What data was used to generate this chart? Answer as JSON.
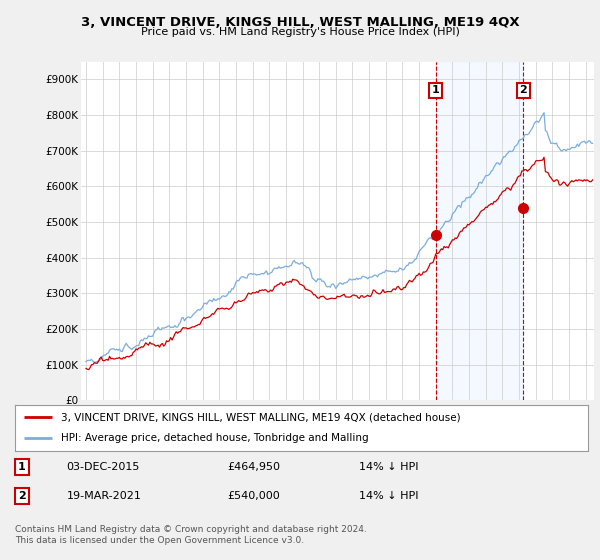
{
  "title": "3, VINCENT DRIVE, KINGS HILL, WEST MALLING, ME19 4QX",
  "subtitle": "Price paid vs. HM Land Registry's House Price Index (HPI)",
  "ylabel_ticks": [
    "£0",
    "£100K",
    "£200K",
    "£300K",
    "£400K",
    "£500K",
    "£600K",
    "£700K",
    "£800K",
    "£900K"
  ],
  "ytick_values": [
    0,
    100000,
    200000,
    300000,
    400000,
    500000,
    600000,
    700000,
    800000,
    900000
  ],
  "ylim": [
    0,
    950000
  ],
  "xlim_start": 1995.0,
  "xlim_end": 2025.5,
  "hpi_color": "#7aade0",
  "price_color": "#cc0000",
  "shade_color": "#ddeeff",
  "sale1_x": 2016.0,
  "sale1_y": 464950,
  "sale1_label": "1",
  "sale1_date": "03-DEC-2015",
  "sale1_price": "£464,950",
  "sale1_hpi": "14% ↓ HPI",
  "sale2_x": 2021.25,
  "sale2_y": 540000,
  "sale2_label": "2",
  "sale2_date": "19-MAR-2021",
  "sale2_price": "£540,000",
  "sale2_hpi": "14% ↓ HPI",
  "legend_label1": "3, VINCENT DRIVE, KINGS HILL, WEST MALLING, ME19 4QX (detached house)",
  "legend_label2": "HPI: Average price, detached house, Tonbridge and Malling",
  "footer": "Contains HM Land Registry data © Crown copyright and database right 2024.\nThis data is licensed under the Open Government Licence v3.0.",
  "background_color": "#f0f0f0",
  "plot_bg_color": "#ffffff"
}
